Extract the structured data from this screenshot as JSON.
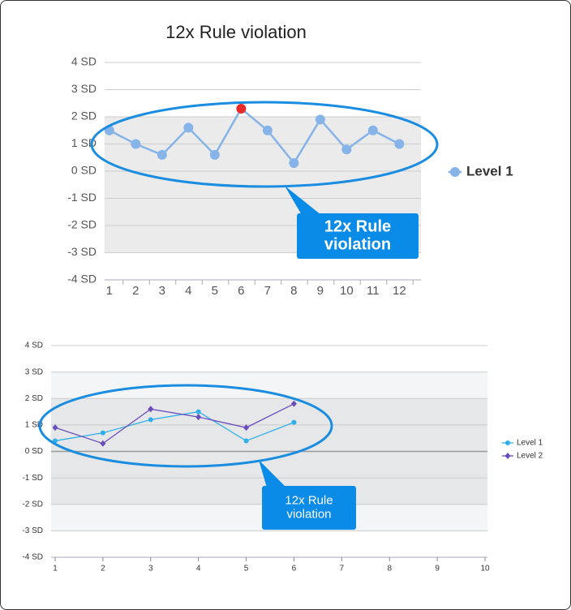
{
  "chart_data": [
    {
      "type": "line",
      "title": "12x Rule violation",
      "categories": [
        "1",
        "2",
        "3",
        "4",
        "5",
        "6",
        "7",
        "8",
        "9",
        "10",
        "11",
        "12"
      ],
      "series": [
        {
          "name": "Level 1",
          "color": "#86b4e8",
          "values": [
            1.5,
            1.0,
            0.6,
            1.6,
            0.6,
            2.3,
            1.5,
            0.3,
            1.9,
            0.8,
            1.5,
            1.0
          ],
          "point_colors": [
            "#86b4e8",
            "#86b4e8",
            "#86b4e8",
            "#86b4e8",
            "#86b4e8",
            "#e82a2a",
            "#86b4e8",
            "#86b4e8",
            "#86b4e8",
            "#86b4e8",
            "#86b4e8",
            "#86b4e8"
          ]
        }
      ],
      "ylim": [
        -4,
        4
      ],
      "yticks": [
        {
          "value": 4,
          "label": "4 SD"
        },
        {
          "value": 3,
          "label": "3 SD"
        },
        {
          "value": 2,
          "label": "2 SD"
        },
        {
          "value": 1,
          "label": "1 SD"
        },
        {
          "value": 0,
          "label": "0 SD"
        },
        {
          "value": -1,
          "label": "-1 SD"
        },
        {
          "value": -2,
          "label": "-2 SD"
        },
        {
          "value": -3,
          "label": "-3 SD"
        },
        {
          "value": -4,
          "label": "-4 SD"
        }
      ],
      "shaded_range": [
        -3,
        2
      ],
      "grid": true,
      "legend": "right",
      "annotation": [
        "12x Rule",
        "violation"
      ]
    },
    {
      "type": "line",
      "x": [
        1,
        2,
        3,
        4,
        5,
        6
      ],
      "series": [
        {
          "name": "Level 1",
          "color": "#2fb0ea",
          "marker": "circle",
          "values": [
            0.4,
            0.7,
            1.2,
            1.5,
            0.4,
            1.1
          ]
        },
        {
          "name": "Level 2",
          "color": "#6a4cbc",
          "marker": "diamond",
          "values": [
            0.9,
            0.3,
            1.6,
            1.3,
            0.9,
            1.8
          ]
        }
      ],
      "xlim": [
        1,
        10
      ],
      "xticks": [
        1,
        2,
        3,
        4,
        5,
        6,
        7,
        8,
        9,
        10
      ],
      "ylim": [
        -4,
        4
      ],
      "yticks": [
        {
          "value": 4,
          "label": "4 SD"
        },
        {
          "value": 3,
          "label": "3 SD"
        },
        {
          "value": 2,
          "label": "2 SD"
        },
        {
          "value": 1,
          "label": "1 SD"
        },
        {
          "value": 0,
          "label": "0 SD"
        },
        {
          "value": -1,
          "label": "-1 SD"
        },
        {
          "value": -2,
          "label": "-2 SD"
        },
        {
          "value": -3,
          "label": "-3 SD"
        },
        {
          "value": -4,
          "label": "-4 SD"
        }
      ],
      "shaded_range": [
        -2,
        2
      ],
      "outer_range": [
        -3,
        3
      ],
      "grid": true,
      "legend": "right",
      "annotation": [
        "12x Rule",
        "violation"
      ]
    }
  ]
}
